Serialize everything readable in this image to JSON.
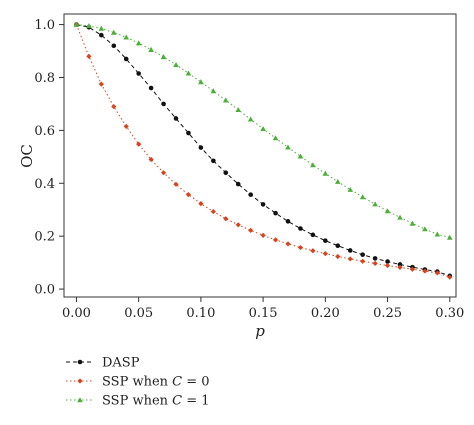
{
  "chart_data": {
    "type": "line",
    "xlabel": "p",
    "ylabel": "OC",
    "xlim": [
      -0.01,
      0.305
    ],
    "ylim": [
      -0.03,
      1.04
    ],
    "xticks": [
      0.0,
      0.05,
      0.1,
      0.15,
      0.2,
      0.25,
      0.3
    ],
    "xtick_labels": [
      "0.00",
      "0.05",
      "0.10",
      "0.15",
      "0.20",
      "0.25",
      "0.30"
    ],
    "yticks": [
      0.0,
      0.2,
      0.4,
      0.6,
      0.8,
      1.0
    ],
    "ytick_labels": [
      "0.0",
      "0.2",
      "0.4",
      "0.6",
      "0.8",
      "1.0"
    ],
    "grid": false,
    "legend_position": "bottom-left",
    "x": [
      0.0,
      0.01,
      0.02,
      0.03,
      0.04,
      0.05,
      0.06,
      0.07,
      0.08,
      0.09,
      0.1,
      0.11,
      0.12,
      0.13,
      0.14,
      0.15,
      0.16,
      0.17,
      0.18,
      0.19,
      0.2,
      0.21,
      0.22,
      0.23,
      0.24,
      0.25,
      0.26,
      0.27,
      0.28,
      0.29,
      0.3
    ],
    "series": [
      {
        "name": "DASP",
        "legend_label": "DASP",
        "color": "#111111",
        "dash": "dashed",
        "marker": "circle",
        "values": [
          1.0,
          0.99,
          0.96,
          0.92,
          0.87,
          0.815,
          0.76,
          0.7,
          0.645,
          0.59,
          0.535,
          0.485,
          0.44,
          0.397,
          0.357,
          0.32,
          0.287,
          0.256,
          0.229,
          0.205,
          0.183,
          0.164,
          0.146,
          0.13,
          0.116,
          0.104,
          0.093,
          0.083,
          0.074,
          0.066,
          0.05
        ]
      },
      {
        "name": "SSP when C = 0",
        "legend_prefix": "SSP when ",
        "legend_var": "C",
        "legend_suffix": " = 0",
        "color": "#d4451e",
        "dash": "dotted",
        "marker": "diamond",
        "values": [
          1.0,
          0.88,
          0.775,
          0.69,
          0.615,
          0.548,
          0.49,
          0.44,
          0.396,
          0.357,
          0.323,
          0.293,
          0.266,
          0.243,
          0.222,
          0.203,
          0.186,
          0.171,
          0.157,
          0.145,
          0.134,
          0.123,
          0.114,
          0.105,
          0.097,
          0.089,
          0.082,
          0.075,
          0.068,
          0.061,
          0.045
        ]
      },
      {
        "name": "SSP when C = 1",
        "legend_prefix": "SSP when ",
        "legend_var": "C",
        "legend_suffix": " = 1",
        "color": "#4daf3a",
        "dash": "dotted",
        "marker": "triangle",
        "values": [
          1.0,
          0.995,
          0.985,
          0.97,
          0.952,
          0.93,
          0.905,
          0.878,
          0.848,
          0.816,
          0.783,
          0.749,
          0.714,
          0.678,
          0.642,
          0.606,
          0.571,
          0.536,
          0.502,
          0.469,
          0.437,
          0.406,
          0.376,
          0.348,
          0.321,
          0.295,
          0.271,
          0.248,
          0.227,
          0.207,
          0.195
        ]
      }
    ]
  }
}
